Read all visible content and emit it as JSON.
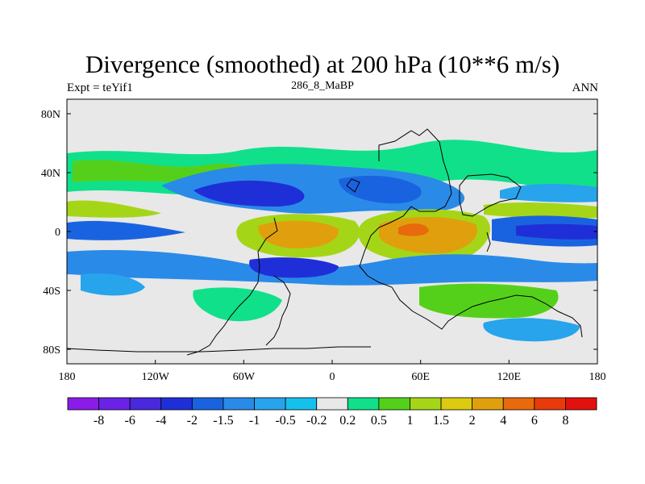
{
  "header": {
    "title": "Divergence (smoothed) at 200 hPa (10**6 m/s)",
    "expt": "Expt = teYif1",
    "run": "286_8_MaBP",
    "season": "ANN"
  },
  "chart_data": {
    "type": "heatmap",
    "variable": "Divergence (smoothed) at 200 hPa",
    "units": "10**6 m/s",
    "x_ticks": [
      "180",
      "120W",
      "60W",
      "0",
      "60E",
      "120E",
      "180"
    ],
    "x_values": [
      -180,
      -120,
      -60,
      0,
      60,
      120,
      180
    ],
    "y_ticks": [
      "80N",
      "40N",
      "0",
      "40S",
      "80S"
    ],
    "y_values": [
      80,
      40,
      0,
      -40,
      -80
    ],
    "xlim": [
      -180,
      180
    ],
    "ylim": [
      -90,
      90
    ],
    "colorbar": {
      "labels": [
        "-8",
        "-6",
        "-4",
        "-2",
        "-1.5",
        "-1",
        "-0.5",
        "-0.2",
        "0.2",
        "0.5",
        "1",
        "1.5",
        "2",
        "4",
        "6",
        "8"
      ],
      "colors": [
        "#8b1ce8",
        "#6a22e6",
        "#4a28dc",
        "#1f2fd8",
        "#1a63e0",
        "#2a8ae8",
        "#27a4ec",
        "#16c0ec",
        "#e8e8e8",
        "#11e08a",
        "#55d01a",
        "#a4d617",
        "#dccb10",
        "#e0a00d",
        "#e86a0c",
        "#e83a0a",
        "#e3110d"
      ]
    }
  }
}
